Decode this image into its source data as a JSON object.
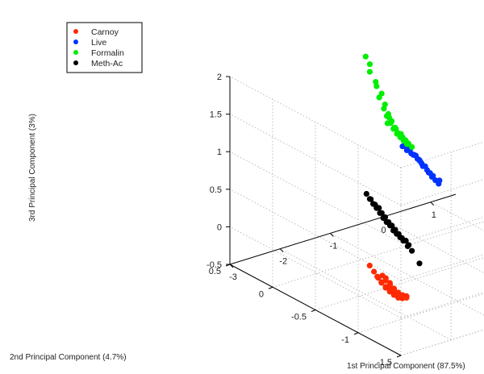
{
  "chart_data": {
    "type": "scatter",
    "projection": "3d",
    "grid": true,
    "legend_position": "top-left",
    "xlabel": "1st Principal Component (87.5%)",
    "ylabel": "2nd Principal Component (4.7%)",
    "zlabel": "3rd Principal Component (3%)",
    "xlim": [
      -3,
      1.5
    ],
    "ylim": [
      -1.5,
      0.5
    ],
    "zlim": [
      -0.5,
      2
    ],
    "xticks": [
      "-3",
      "-2",
      "-1",
      "0",
      "1"
    ],
    "yticks": [
      "-1.5",
      "-1",
      "-0.5",
      "0",
      "0.5"
    ],
    "zticks": [
      "-0.5",
      "0",
      "0.5",
      "1",
      "1.5",
      "2"
    ],
    "series": [
      {
        "name": "Carnoy",
        "color": "#ff2a00",
        "x": [
          -2.6,
          -2.6,
          -2.6,
          -2.55,
          -2.55,
          -2.5,
          -2.5,
          -2.5,
          -2.45,
          -2.45,
          -2.4,
          -2.4,
          -2.4,
          -2.35,
          -2.35,
          -2.3,
          -2.3,
          -2.3,
          -2.25,
          -2.25,
          -2.2,
          -2.2,
          -2.2,
          -2.15,
          -2.15,
          -2.1,
          -2.1,
          -2.05,
          -2.05,
          -2.0,
          -2.0,
          -1.95,
          -1.95,
          -1.9,
          -1.9,
          -1.85,
          -1.8
        ],
        "y": [
          -0.95,
          -1.0,
          -0.9,
          -0.97,
          -1.02,
          -0.93,
          -0.98,
          -1.03,
          -0.95,
          -1.0,
          -0.92,
          -0.97,
          -1.02,
          -0.94,
          -0.99,
          -0.91,
          -0.96,
          -1.01,
          -0.93,
          -0.98,
          -0.9,
          -0.95,
          -1.0,
          -0.92,
          -0.97,
          -0.89,
          -0.94,
          -0.91,
          -0.96,
          -0.88,
          -0.93,
          -0.9,
          -0.95,
          -0.87,
          -0.92,
          -0.89,
          -0.86
        ],
        "z": [
          0.2,
          0.15,
          0.25,
          0.12,
          0.18,
          0.1,
          0.05,
          0.14,
          0.02,
          0.08,
          0.0,
          -0.04,
          0.05,
          -0.06,
          0.0,
          -0.1,
          -0.05,
          -0.12,
          -0.14,
          -0.08,
          -0.18,
          -0.12,
          -0.2,
          -0.22,
          -0.16,
          -0.25,
          -0.2,
          -0.28,
          -0.22,
          -0.3,
          -0.25,
          -0.32,
          -0.27,
          -0.33,
          -0.29,
          -0.34,
          -0.35
        ]
      },
      {
        "name": "Live",
        "color": "#0033ff",
        "x": [
          0.1,
          0.15,
          0.2,
          0.22,
          0.25,
          0.28,
          0.3,
          0.33,
          0.35,
          0.38,
          0.4,
          0.42,
          0.45,
          0.47,
          0.5,
          0.52,
          0.55,
          0.58,
          0.6,
          0.62,
          0.65,
          0.7
        ],
        "y": [
          0.3,
          0.28,
          0.32,
          0.27,
          0.3,
          0.25,
          0.29,
          0.26,
          0.31,
          0.24,
          0.28,
          0.25,
          0.3,
          0.23,
          0.27,
          0.24,
          0.22,
          0.26,
          0.21,
          0.25,
          0.2,
          0.22
        ],
        "z": [
          0.55,
          0.5,
          0.52,
          0.45,
          0.48,
          0.42,
          0.4,
          0.36,
          0.38,
          0.3,
          0.32,
          0.25,
          0.28,
          0.2,
          0.22,
          0.15,
          0.1,
          0.12,
          0.05,
          0.08,
          0.0,
          0.02
        ]
      },
      {
        "name": "Formalin",
        "color": "#00ee00",
        "x": [
          -0.55,
          -0.5,
          -0.45,
          -0.4,
          -0.35,
          -0.3,
          -0.28,
          -0.25,
          -0.22,
          -0.2,
          -0.18,
          -0.15,
          -0.12,
          -0.1,
          -0.08,
          -0.05,
          -0.03,
          0.0,
          0.02,
          0.05,
          0.07,
          0.1,
          0.12,
          0.15,
          -0.2,
          -0.1,
          0.0,
          0.05,
          -0.15,
          -0.05,
          0.08,
          0.1
        ],
        "y": [
          0.35,
          0.33,
          0.36,
          0.32,
          0.34,
          0.31,
          0.35,
          0.3,
          0.33,
          0.29,
          0.32,
          0.28,
          0.31,
          0.27,
          0.3,
          0.26,
          0.29,
          0.25,
          0.28,
          0.24,
          0.27,
          0.23,
          0.26,
          0.22,
          0.3,
          0.28,
          0.26,
          0.27,
          0.31,
          0.29,
          0.25,
          0.24
        ],
        "z": [
          1.85,
          1.75,
          1.62,
          1.5,
          1.42,
          1.33,
          1.25,
          1.18,
          1.1,
          1.05,
          1.0,
          0.95,
          0.9,
          0.86,
          0.82,
          0.78,
          0.75,
          0.72,
          0.7,
          0.68,
          0.65,
          0.63,
          0.6,
          0.58,
          0.92,
          0.85,
          0.76,
          0.7,
          0.98,
          0.82,
          0.66,
          0.62
        ]
      },
      {
        "name": "Meth-Ac",
        "color": "#000000",
        "x": [
          -1.3,
          -1.25,
          -1.2,
          -1.18,
          -1.15,
          -1.12,
          -1.1,
          -1.08,
          -1.05,
          -1.03,
          -1.0,
          -0.98,
          -0.95,
          -0.93,
          -0.9,
          -0.88,
          -0.85,
          -0.83,
          -0.8,
          -0.78,
          -0.75,
          -0.72,
          -0.7,
          -0.68,
          -0.65,
          -0.6,
          -0.5
        ],
        "y": [
          -0.1,
          -0.12,
          -0.08,
          -0.13,
          -0.09,
          -0.14,
          -0.1,
          -0.15,
          -0.11,
          -0.16,
          -0.12,
          -0.17,
          -0.13,
          -0.18,
          -0.14,
          -0.19,
          -0.15,
          -0.2,
          -0.16,
          -0.21,
          -0.17,
          -0.22,
          -0.18,
          -0.23,
          -0.2,
          -0.22,
          -0.25
        ],
        "z": [
          0.45,
          0.38,
          0.35,
          0.3,
          0.28,
          0.25,
          0.22,
          0.18,
          0.15,
          0.12,
          0.08,
          0.05,
          0.02,
          0.0,
          -0.03,
          -0.06,
          -0.1,
          -0.12,
          -0.15,
          -0.18,
          -0.2,
          -0.22,
          -0.25,
          -0.28,
          -0.32,
          -0.38,
          -0.55
        ]
      }
    ]
  }
}
